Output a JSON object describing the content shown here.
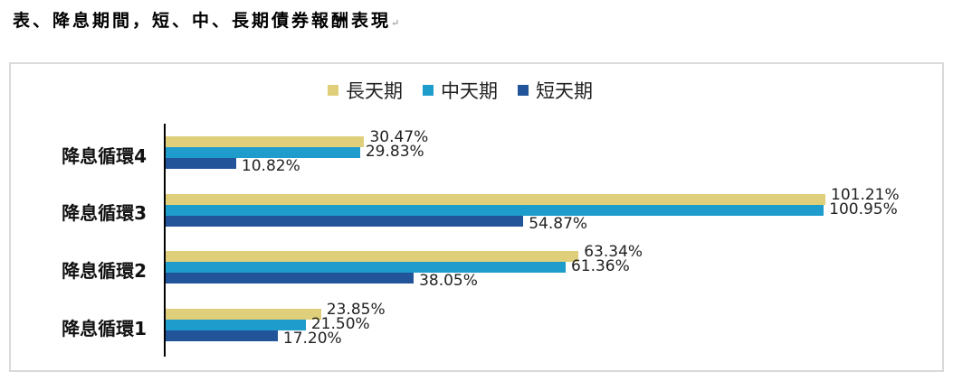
{
  "document": {
    "title": "表、降息期間，短、中、長期債券報酬表現",
    "paragraph_mark": "↵"
  },
  "chart_data": {
    "type": "bar",
    "orientation": "horizontal",
    "title": "",
    "xlabel": "",
    "ylabel": "",
    "categories": [
      "降息循環4",
      "降息循環3",
      "降息循環2",
      "降息循環1"
    ],
    "series": [
      {
        "name": "長天期",
        "color": "#dfcf7a",
        "values": [
          30.47,
          101.21,
          63.34,
          23.85
        ],
        "labels": [
          "30.47%",
          "101.21%",
          "63.34%",
          "23.85%"
        ]
      },
      {
        "name": "中天期",
        "color": "#1e9ccb",
        "values": [
          29.83,
          100.95,
          61.36,
          21.5
        ],
        "labels": [
          "29.83%",
          "100.95%",
          "61.36%",
          "21.50%"
        ]
      },
      {
        "name": "短天期",
        "color": "#215498",
        "values": [
          10.82,
          54.87,
          38.05,
          17.2
        ],
        "labels": [
          "10.82%",
          "54.87%",
          "38.05%",
          "17.20%"
        ]
      }
    ],
    "legend_position": "top",
    "grid": false,
    "xlim": [
      0,
      110
    ],
    "unit": "%"
  }
}
